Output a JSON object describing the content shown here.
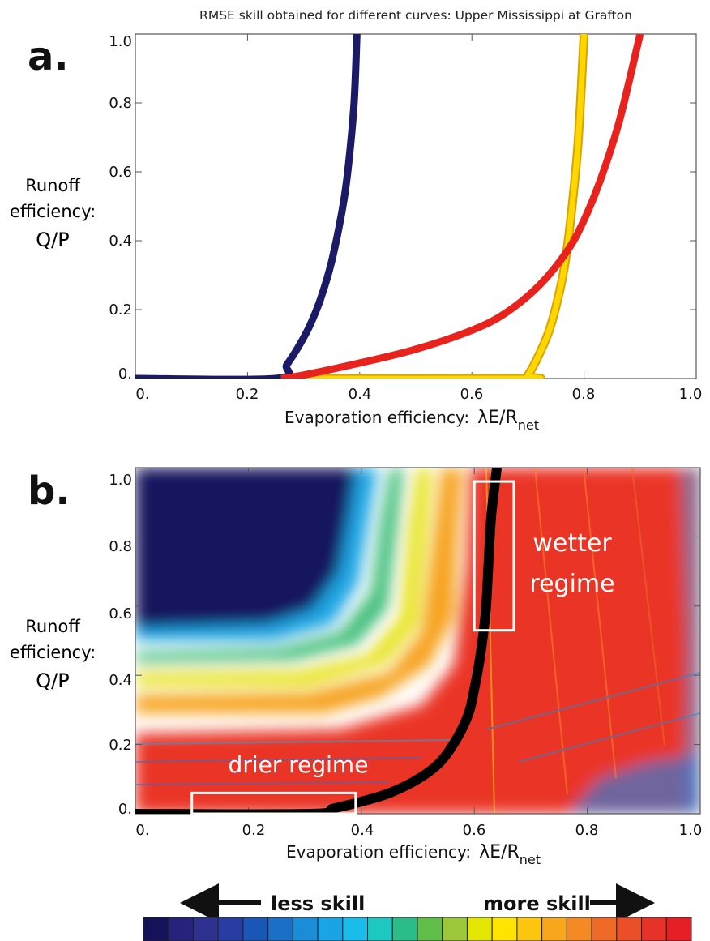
{
  "title": "RMSE skill obtained for different curves: Upper Mississippi at Grafton",
  "chart_data": [
    {
      "type": "line",
      "panel_label": "a.",
      "xlabel_prefix": "Evaporation efficiency:",
      "xlabel_symbol": "λE/R",
      "xlabel_subscript": "net",
      "ylabel_lines": [
        "Runoff",
        "efficiency:",
        "Q/P"
      ],
      "xlim": [
        0,
        1
      ],
      "ylim": [
        0,
        1
      ],
      "x_tick_labels": [
        "0.",
        "0.2",
        "0.4",
        "0.6",
        "0.8",
        "1.0"
      ],
      "y_tick_labels": [
        "0.",
        "0.2",
        "0.4",
        "0.6",
        "0.8",
        "1.0"
      ],
      "x_tick_values": [
        0,
        0.2,
        0.4,
        0.6,
        0.8,
        1.0
      ],
      "y_tick_values": [
        0,
        0.2,
        0.4,
        0.6,
        0.8,
        1.0
      ],
      "grid": false,
      "series": [
        {
          "color": "#1b1a66",
          "x": [
            0,
            0.25,
            0.27,
            0.29,
            0.31,
            0.33,
            0.35,
            0.37,
            0.38,
            0.39,
            0.395
          ],
          "y": [
            0,
            0,
            0.04,
            0.09,
            0.15,
            0.23,
            0.34,
            0.5,
            0.62,
            0.8,
            1.0
          ]
        },
        {
          "color": "#ffd700",
          "x": [
            0.28,
            0.69,
            0.7,
            0.72,
            0.74,
            0.76,
            0.77,
            0.78,
            0.79,
            0.8
          ],
          "y": [
            0,
            0,
            0.01,
            0.07,
            0.15,
            0.28,
            0.38,
            0.52,
            0.7,
            1.0
          ]
        },
        {
          "color": "#e8231d",
          "x": [
            0.26,
            0.3,
            0.4,
            0.5,
            0.6,
            0.66,
            0.72,
            0.77,
            0.8,
            0.83,
            0.86,
            0.88,
            0.9
          ],
          "y": [
            0,
            0.01,
            0.045,
            0.085,
            0.14,
            0.19,
            0.27,
            0.37,
            0.46,
            0.58,
            0.73,
            0.86,
            1.0
          ]
        }
      ]
    },
    {
      "type": "heatmap",
      "panel_label": "b.",
      "xlabel_prefix": "Evaporation efficiency:",
      "xlabel_symbol": "λE/R",
      "xlabel_subscript": "net",
      "ylabel_lines": [
        "Runoff",
        "efficiency:",
        "Q/P"
      ],
      "xlim": [
        0,
        1
      ],
      "ylim": [
        0,
        1
      ],
      "x_tick_labels": [
        "0.",
        "0.2",
        "0.4",
        "0.6",
        "0.8",
        "1.0"
      ],
      "y_tick_labels": [
        "0.",
        "0.2",
        "0.4",
        "0.6",
        "0.8",
        "1.0"
      ],
      "x_tick_values": [
        0,
        0.2,
        0.4,
        0.6,
        0.8,
        1.0
      ],
      "y_tick_values": [
        0,
        0.2,
        0.4,
        0.6,
        0.8,
        1.0
      ],
      "best_curve": {
        "color": "#000000",
        "x": [
          0,
          0.31,
          0.35,
          0.4,
          0.45,
          0.5,
          0.54,
          0.57,
          0.59,
          0.6,
          0.61,
          0.62,
          0.625,
          0.63,
          0.64
        ],
        "y": [
          0,
          0,
          0.015,
          0.035,
          0.06,
          0.1,
          0.15,
          0.22,
          0.29,
          0.36,
          0.45,
          0.58,
          0.72,
          0.86,
          1.0
        ]
      },
      "annotations": [
        {
          "lines": [
            "drier regime"
          ],
          "box": {
            "x": [
              0.1,
              0.39
            ],
            "y": [
              0,
              0.06
            ]
          }
        },
        {
          "lines": [
            "wetter",
            "regime"
          ],
          "box": {
            "x": [
              0.6,
              0.67
            ],
            "y": [
              0.53,
              0.96
            ]
          }
        }
      ]
    }
  ],
  "colorbar": {
    "less_label": "less skill",
    "more_label": "more skill",
    "colors": [
      "#14135a",
      "#25237a",
      "#2e3190",
      "#283da3",
      "#1a56b5",
      "#1a6fc6",
      "#1a8cd8",
      "#19a4e6",
      "#19bcea",
      "#1dc8c0",
      "#2bbd88",
      "#60bd48",
      "#9cc73a",
      "#e3e600",
      "#ffe400",
      "#fcc60f",
      "#f8a71b",
      "#f58a25",
      "#ef6a26",
      "#ea4f28",
      "#e63228",
      "#e61e25"
    ]
  }
}
